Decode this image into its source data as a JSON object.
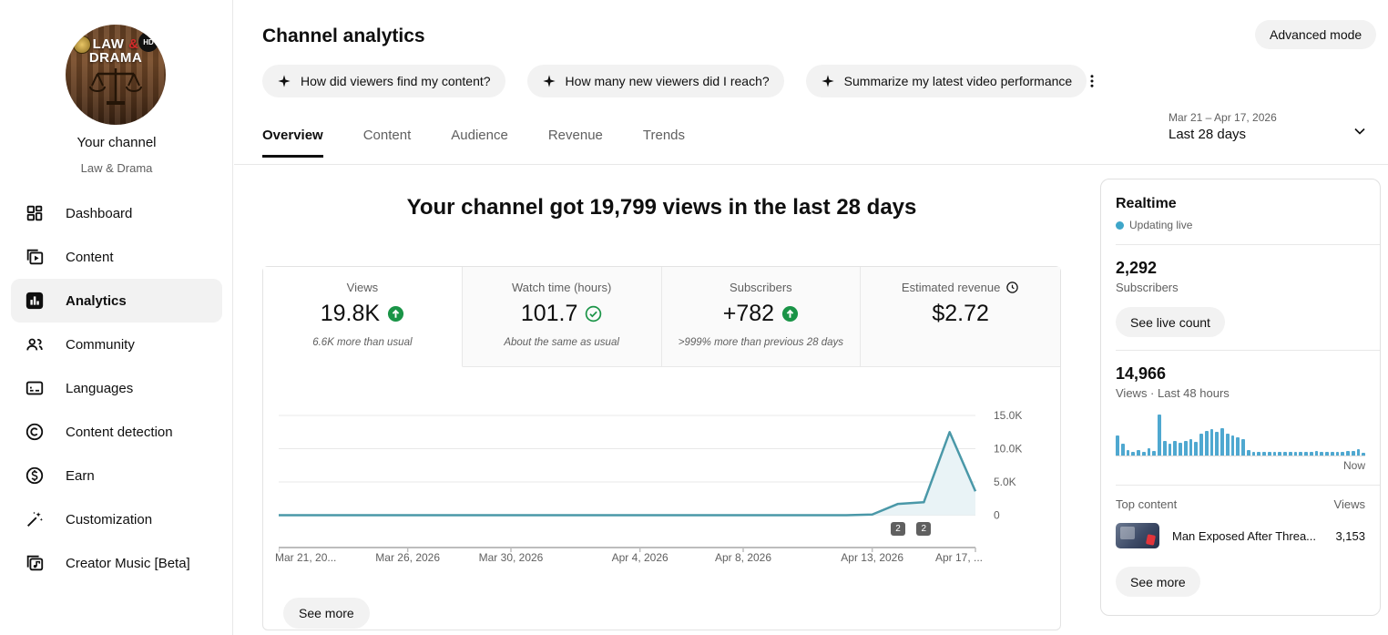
{
  "header": {
    "title": "Channel analytics",
    "advanced_mode": "Advanced mode",
    "chips": [
      {
        "icon": "sparkle-icon",
        "label": "How did viewers find my content?"
      },
      {
        "icon": "sparkle-icon",
        "label": "How many new viewers did I reach?"
      },
      {
        "icon": "sparkle-icon",
        "label": "Summarize my latest video performance"
      }
    ],
    "date_filter": {
      "range": "Mar 21 – Apr 17, 2026",
      "preset": "Last 28 days"
    }
  },
  "tabs": {
    "items": [
      {
        "label": "Overview",
        "active": true
      },
      {
        "label": "Content"
      },
      {
        "label": "Audience"
      },
      {
        "label": "Revenue"
      },
      {
        "label": "Trends"
      }
    ]
  },
  "sidebar": {
    "avatar": {
      "line1_a": "LAW ",
      "line1_amp": "&",
      "line2": "DRAMA",
      "corner_badge": "HD"
    },
    "channel_label": "Your channel",
    "channel_name": "Law & Drama",
    "items": [
      {
        "label": "Dashboard",
        "icon": "dashboard-icon"
      },
      {
        "label": "Content",
        "icon": "content-icon"
      },
      {
        "label": "Analytics",
        "icon": "analytics-icon",
        "active": true
      },
      {
        "label": "Community",
        "icon": "community-icon"
      },
      {
        "label": "Languages",
        "icon": "languages-icon"
      },
      {
        "label": "Content detection",
        "icon": "copyright-icon"
      },
      {
        "label": "Earn",
        "icon": "dollar-icon"
      },
      {
        "label": "Customization",
        "icon": "wand-icon"
      },
      {
        "label": "Creator Music [Beta]",
        "icon": "music-icon"
      }
    ]
  },
  "overview": {
    "headline": "Your channel got 19,799 views in the last 28 days",
    "metrics": [
      {
        "label": "Views",
        "value": "19.8K",
        "icon": "trend-up-icon",
        "note": "6.6K more than usual",
        "selected": true
      },
      {
        "label": "Watch time (hours)",
        "value": "101.7",
        "icon": "ok-check-icon",
        "note": "About the same as usual"
      },
      {
        "label": "Subscribers",
        "value": "+782",
        "icon": "trend-up-icon",
        "note": ">999% more than previous 28 days"
      },
      {
        "label": "Estimated revenue",
        "value": "$2.72",
        "icon": "clock-icon",
        "note": ""
      }
    ],
    "see_more": "See more"
  },
  "realtime": {
    "title": "Realtime",
    "status": "Updating live",
    "subscribers": "2,292",
    "subscribers_label": "Subscribers",
    "live_count_button": "See live count",
    "views_48h": "14,966",
    "views_label": "Views · Last 48 hours",
    "now_label": "Now",
    "top_content_label": "Top content",
    "views_col_label": "Views",
    "top_video": {
      "title": "Man Exposed After Threa...",
      "views": "3,153"
    },
    "see_more": "See more"
  },
  "chart_data": [
    {
      "type": "line",
      "title": "Channel views per day, last 28 days",
      "x_tick_labels": [
        "Mar 21, 20...",
        "Mar 26, 2026",
        "Mar 30, 2026",
        "Apr 4, 2026",
        "Apr 8, 2026",
        "Apr 13, 2026",
        "Apr 17, ..."
      ],
      "x_tick_days": [
        0,
        5,
        9,
        14,
        18,
        23,
        27
      ],
      "x_range": [
        "Mar 21, 2026",
        "Apr 17, 2026"
      ],
      "values": [
        0,
        0,
        0,
        0,
        0,
        0,
        0,
        0,
        0,
        0,
        0,
        0,
        0,
        0,
        0,
        0,
        0,
        0,
        0,
        0,
        0,
        0,
        0,
        100,
        1700,
        1950,
        12500,
        3600
      ],
      "y_ticks": [
        {
          "value": 0,
          "label": "0"
        },
        {
          "value": 5000,
          "label": "5.0K"
        },
        {
          "value": 10000,
          "label": "10.0K"
        },
        {
          "value": 15000,
          "label": "15.0K"
        }
      ],
      "ylim": [
        0,
        16500
      ],
      "grid": true,
      "legend": "none",
      "markers": [
        {
          "day": 24,
          "label": "2"
        },
        {
          "day": 25,
          "label": "2"
        }
      ]
    },
    {
      "type": "bar",
      "title": "Views per hour, last 48 hours",
      "unit": "relative-height-percent",
      "end_label": "Now",
      "values": [
        48,
        30,
        13,
        10,
        13,
        10,
        17,
        12,
        100,
        36,
        28,
        36,
        31,
        36,
        40,
        34,
        54,
        60,
        64,
        58,
        67,
        54,
        50,
        44,
        39,
        14,
        10,
        10,
        9,
        10,
        9,
        10,
        10,
        9,
        10,
        9,
        10,
        10,
        11,
        10,
        9,
        10,
        10,
        10,
        11,
        12,
        15,
        7
      ]
    }
  ],
  "colors": {
    "accent_line": "#4a98a8",
    "accent_area": "#e9f3f6",
    "realtime_bar": "#4fa8d0",
    "positive_green": "#1a9447",
    "live_dot": "#3ea6c9",
    "marker_badge": "#606060"
  }
}
